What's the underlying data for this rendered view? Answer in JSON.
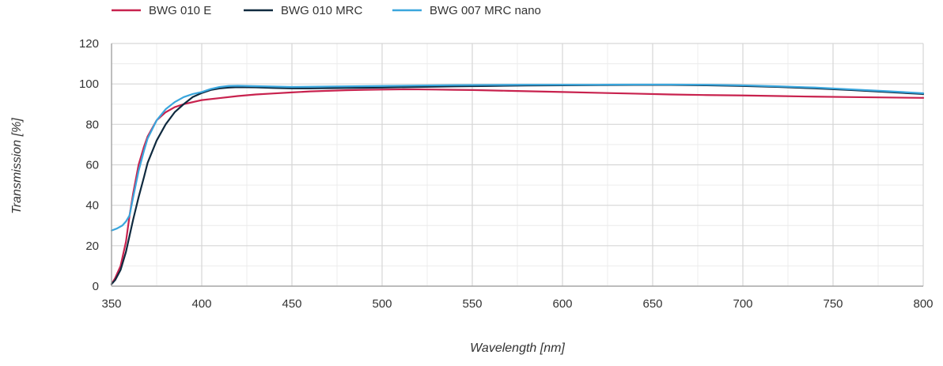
{
  "chart_data": {
    "type": "line",
    "title": "",
    "xlabel": "Wavelength [nm]",
    "ylabel": "Transmission [%]",
    "xlim": [
      350,
      800
    ],
    "ylim": [
      0,
      120
    ],
    "x_ticks": [
      350,
      400,
      450,
      500,
      550,
      600,
      650,
      700,
      750,
      800
    ],
    "y_ticks": [
      0,
      20,
      40,
      60,
      80,
      100,
      120
    ],
    "grid": true,
    "legend_position": "top-left",
    "series": [
      {
        "name": "BWG 010 E",
        "color": "#c8224e",
        "points": [
          [
            350,
            1
          ],
          [
            352,
            4
          ],
          [
            355,
            10
          ],
          [
            358,
            22
          ],
          [
            360,
            35
          ],
          [
            362,
            46
          ],
          [
            365,
            60
          ],
          [
            368,
            69
          ],
          [
            370,
            74
          ],
          [
            375,
            82
          ],
          [
            380,
            86
          ],
          [
            385,
            88.5
          ],
          [
            390,
            90
          ],
          [
            400,
            92
          ],
          [
            410,
            93
          ],
          [
            420,
            94
          ],
          [
            430,
            94.8
          ],
          [
            440,
            95.3
          ],
          [
            450,
            95.8
          ],
          [
            460,
            96.3
          ],
          [
            470,
            96.6
          ],
          [
            480,
            96.9
          ],
          [
            490,
            97.1
          ],
          [
            500,
            97.2
          ],
          [
            510,
            97.3
          ],
          [
            520,
            97.3
          ],
          [
            530,
            97.2
          ],
          [
            540,
            97.1
          ],
          [
            550,
            97
          ],
          [
            560,
            96.8
          ],
          [
            570,
            96.6
          ],
          [
            580,
            96.4
          ],
          [
            590,
            96.2
          ],
          [
            600,
            96
          ],
          [
            620,
            95.6
          ],
          [
            640,
            95.2
          ],
          [
            660,
            94.8
          ],
          [
            680,
            94.5
          ],
          [
            700,
            94.3
          ],
          [
            720,
            94
          ],
          [
            740,
            93.7
          ],
          [
            760,
            93.5
          ],
          [
            780,
            93.3
          ],
          [
            800,
            93.1
          ]
        ]
      },
      {
        "name": "BWG 010 MRC",
        "color": "#0f2a3f",
        "points": [
          [
            350,
            1
          ],
          [
            352,
            3
          ],
          [
            355,
            8
          ],
          [
            358,
            17
          ],
          [
            360,
            25
          ],
          [
            362,
            33
          ],
          [
            365,
            44
          ],
          [
            368,
            54
          ],
          [
            370,
            61
          ],
          [
            375,
            72
          ],
          [
            380,
            80
          ],
          [
            385,
            86
          ],
          [
            390,
            90
          ],
          [
            395,
            93.5
          ],
          [
            400,
            95.5
          ],
          [
            405,
            97
          ],
          [
            410,
            97.8
          ],
          [
            415,
            98.2
          ],
          [
            420,
            98.4
          ],
          [
            430,
            98.3
          ],
          [
            440,
            98
          ],
          [
            450,
            97.8
          ],
          [
            460,
            97.8
          ],
          [
            470,
            97.9
          ],
          [
            480,
            98
          ],
          [
            490,
            98.1
          ],
          [
            500,
            98.2
          ],
          [
            520,
            98.5
          ],
          [
            540,
            98.8
          ],
          [
            560,
            99
          ],
          [
            580,
            99.2
          ],
          [
            600,
            99.3
          ],
          [
            620,
            99.4
          ],
          [
            640,
            99.5
          ],
          [
            660,
            99.5
          ],
          [
            680,
            99.3
          ],
          [
            700,
            99
          ],
          [
            720,
            98.5
          ],
          [
            740,
            97.8
          ],
          [
            760,
            97
          ],
          [
            780,
            96
          ],
          [
            800,
            95
          ]
        ]
      },
      {
        "name": "BWG 007 MRC nano",
        "color": "#3aa6dd",
        "points": [
          [
            350,
            27.5
          ],
          [
            353,
            28.5
          ],
          [
            356,
            30
          ],
          [
            358,
            32
          ],
          [
            360,
            35
          ],
          [
            362,
            44
          ],
          [
            365,
            57
          ],
          [
            368,
            67
          ],
          [
            370,
            73
          ],
          [
            375,
            82
          ],
          [
            380,
            87.5
          ],
          [
            385,
            91
          ],
          [
            390,
            93.5
          ],
          [
            395,
            95
          ],
          [
            400,
            96
          ],
          [
            405,
            97.5
          ],
          [
            410,
            98.5
          ],
          [
            415,
            99
          ],
          [
            420,
            99.1
          ],
          [
            430,
            98.9
          ],
          [
            440,
            98.7
          ],
          [
            450,
            98.5
          ],
          [
            460,
            98.6
          ],
          [
            480,
            98.8
          ],
          [
            500,
            99
          ],
          [
            520,
            99.2
          ],
          [
            540,
            99.4
          ],
          [
            560,
            99.5
          ],
          [
            580,
            99.6
          ],
          [
            600,
            99.6
          ],
          [
            620,
            99.6
          ],
          [
            640,
            99.7
          ],
          [
            660,
            99.7
          ],
          [
            680,
            99.6
          ],
          [
            700,
            99.3
          ],
          [
            720,
            98.8
          ],
          [
            740,
            98.2
          ],
          [
            760,
            97.3
          ],
          [
            780,
            96.4
          ],
          [
            800,
            95.4
          ]
        ]
      }
    ]
  }
}
